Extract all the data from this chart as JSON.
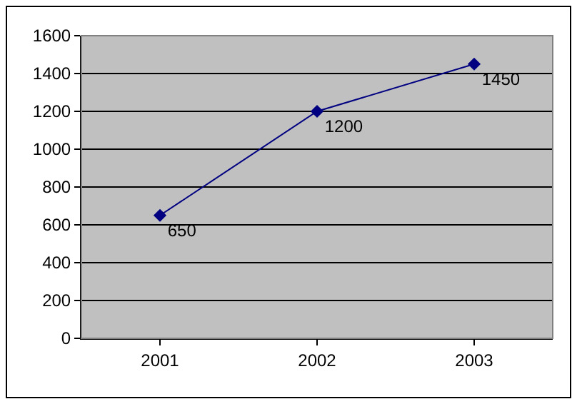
{
  "chart_data": {
    "type": "line",
    "categories": [
      "2001",
      "2002",
      "2003"
    ],
    "series": [
      {
        "color": "#000080",
        "values": [
          650,
          1200,
          1450
        ]
      }
    ],
    "ylim": [
      0,
      1600
    ],
    "yticks": [
      0,
      200,
      400,
      600,
      800,
      1000,
      1200,
      1400,
      1600
    ],
    "grid": "y",
    "marker": "diamond",
    "line_style": "solid",
    "data_labels": true
  }
}
